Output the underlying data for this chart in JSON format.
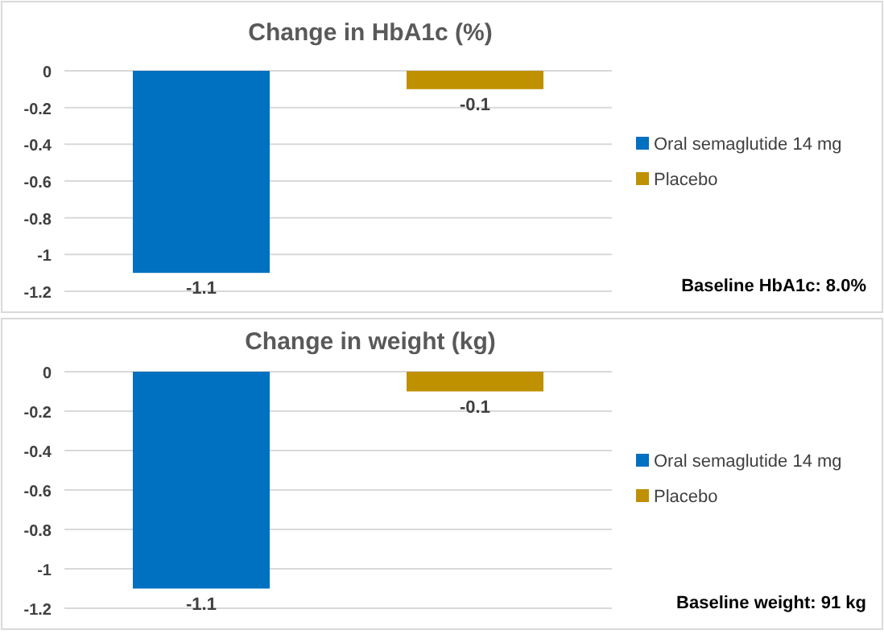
{
  "chart_data": [
    {
      "type": "bar",
      "title": "Change in HbA1c (%)",
      "categories": [
        null
      ],
      "series": [
        {
          "name": "Oral semaglutide 14 mg",
          "color": "#0070c0",
          "values": [
            -1.1
          ]
        },
        {
          "name": "Placebo",
          "color": "#bf9000",
          "values": [
            -0.1
          ]
        }
      ],
      "ylim": [
        -1.2,
        0
      ],
      "yticks": [
        -1.2,
        -1,
        -0.8,
        -0.6,
        -0.4,
        -0.2,
        0
      ],
      "grid": "y",
      "legend": "right",
      "data_labels": true,
      "annotations": [
        "Baseline HbA1c: 8.0%"
      ]
    },
    {
      "type": "bar",
      "title": "Change in weight (kg)",
      "categories": [
        null
      ],
      "series": [
        {
          "name": "Oral semaglutide 14 mg",
          "color": "#0070c0",
          "values": [
            -1.1
          ]
        },
        {
          "name": "Placebo",
          "color": "#bf9000",
          "values": [
            -0.1
          ]
        }
      ],
      "ylim": [
        -1.2,
        0
      ],
      "yticks": [
        -1.2,
        -1,
        -0.8,
        -0.6,
        -0.4,
        -0.2,
        0
      ],
      "grid": "y",
      "legend": "right",
      "data_labels": true,
      "annotations": [
        "Baseline weight: 91 kg"
      ]
    }
  ]
}
